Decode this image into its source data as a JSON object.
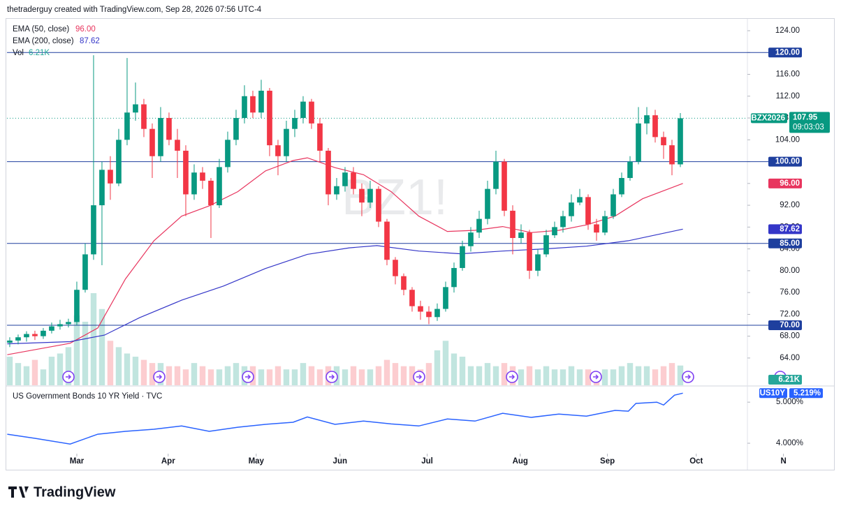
{
  "chart_data": {
    "type": "candlestick",
    "title": "thetraderguy created with TradingView.com, Sep 28, 2026 07:56 UTC-4",
    "watermark": "BZ1!",
    "brand": "TradingView",
    "up_color": "#089981",
    "down_color": "#f23645",
    "xlim": [
      -0.33,
      88
    ],
    "xticks": [
      {
        "value": 8,
        "label": "Mar"
      },
      {
        "value": 18.9,
        "label": "Apr"
      },
      {
        "value": 29.4,
        "label": "May"
      },
      {
        "value": 39.4,
        "label": "Jun"
      },
      {
        "value": 49.8,
        "label": "Jul"
      },
      {
        "value": 60.9,
        "label": "Aug"
      },
      {
        "value": 71.3,
        "label": "Sep"
      },
      {
        "value": 81.9,
        "label": "Oct"
      },
      {
        "value": 92.3,
        "label": "N"
      }
    ],
    "ylim": [
      59,
      128.35
    ],
    "yticks": [
      {
        "value": 64,
        "label": "64.00"
      },
      {
        "value": 68,
        "label": "68.00"
      },
      {
        "value": 72,
        "label": "72.00"
      },
      {
        "value": 76,
        "label": "76.00"
      },
      {
        "value": 80,
        "label": "80.00"
      },
      {
        "value": 84,
        "label": "84.00"
      },
      {
        "value": 88,
        "label": "88.00"
      },
      {
        "value": 92,
        "label": "92.00"
      },
      {
        "value": 96,
        "label": "96.00"
      },
      {
        "value": 100,
        "label": "100.00"
      },
      {
        "value": 104,
        "label": "104.00"
      },
      {
        "value": 108,
        "label": "108.00"
      },
      {
        "value": 112,
        "label": "112.00"
      },
      {
        "value": 116,
        "label": "116.00"
      },
      {
        "value": 120,
        "label": "120.00"
      },
      {
        "value": 124,
        "label": "124.00"
      }
    ],
    "levels": [
      {
        "value": 120,
        "label": "120.00"
      },
      {
        "value": 100,
        "label": "100.00"
      },
      {
        "value": 85,
        "label": "85.00"
      },
      {
        "value": 70,
        "label": "70.00"
      }
    ],
    "level_color": "#1e3f9e",
    "ticker": "BZX2026",
    "last_price": {
      "value": 107.95,
      "label": "107.95"
    },
    "countdown": "09:03:03",
    "open": [
      66.8,
      67.2,
      67.8,
      68.4,
      68.0,
      69.0,
      69.8,
      70.2,
      70.6,
      76.5,
      83.0,
      92.0,
      98.5,
      96.0,
      104.0,
      109.0,
      110.5,
      106.0,
      101.0,
      108.0,
      104.0,
      102.0,
      94.0,
      98.0,
      96.5,
      92.0,
      99.0,
      104.0,
      108.0,
      112.0,
      109.0,
      113.0,
      103.0,
      101.0,
      106.0,
      108.0,
      111.0,
      107.0,
      102.0,
      94.0,
      95.5,
      98.0,
      95.0,
      92.5,
      95.0,
      89.0,
      82.0,
      79.0,
      76.5,
      73.5,
      72.5,
      71.5,
      73.0,
      77.0,
      80.5,
      84.5,
      87.0,
      89.5,
      95.0,
      100.0,
      91.0,
      86.0,
      87.0,
      80.0,
      83.0,
      86.5,
      88.0,
      90.0,
      92.5,
      93.5,
      88.5,
      87.0,
      90.0,
      94.0,
      97.0,
      100.0,
      107.0,
      108.5,
      104.5,
      103.0,
      99.5
    ],
    "high": [
      67.8,
      68.3,
      68.9,
      69.0,
      69.5,
      70.5,
      71.0,
      71.2,
      78.0,
      85.0,
      119.5,
      100.0,
      101.0,
      106.0,
      119.0,
      114.5,
      111.5,
      107.0,
      110.0,
      109.0,
      106.0,
      103.0,
      99.5,
      99.0,
      97.0,
      100.5,
      105.5,
      109.5,
      114.0,
      113.0,
      115.0,
      113.5,
      104.0,
      107.5,
      109.5,
      112.0,
      111.5,
      108.0,
      102.5,
      97.0,
      99.0,
      99.0,
      96.0,
      96.5,
      95.5,
      89.5,
      82.5,
      79.5,
      77.0,
      74.5,
      73.5,
      74.0,
      78.0,
      81.5,
      85.5,
      88.0,
      91.0,
      96.5,
      102.0,
      100.5,
      92.0,
      88.5,
      87.5,
      84.0,
      87.5,
      89.0,
      91.0,
      94.0,
      95.0,
      94.0,
      89.5,
      91.0,
      95.0,
      98.0,
      101.0,
      110.0,
      110.0,
      109.5,
      105.5,
      104.0,
      108.9
    ],
    "low": [
      66.0,
      66.5,
      67.0,
      67.3,
      67.5,
      68.5,
      69.2,
      69.6,
      70.0,
      76.0,
      82.0,
      81.0,
      93.0,
      95.5,
      103.0,
      107.5,
      104.5,
      97.0,
      100.0,
      103.0,
      97.0,
      90.0,
      93.0,
      95.0,
      86.0,
      91.5,
      98.0,
      103.0,
      107.0,
      108.0,
      108.0,
      101.0,
      97.5,
      100.0,
      104.5,
      107.0,
      106.0,
      100.0,
      92.0,
      93.0,
      94.5,
      94.0,
      90.0,
      91.5,
      88.0,
      81.0,
      77.5,
      75.5,
      72.5,
      71.0,
      70.2,
      70.8,
      72.5,
      76.0,
      80.0,
      83.5,
      86.0,
      88.5,
      94.0,
      90.0,
      83.0,
      85.0,
      78.5,
      79.0,
      82.5,
      86.0,
      87.0,
      89.0,
      92.0,
      87.5,
      85.5,
      86.5,
      89.5,
      93.5,
      96.5,
      99.5,
      105.0,
      103.5,
      100.5,
      97.5,
      99.0
    ],
    "close": [
      67.2,
      67.8,
      68.4,
      68.0,
      69.0,
      69.8,
      70.2,
      70.6,
      76.5,
      83.0,
      92.0,
      98.5,
      96.0,
      104.0,
      109.0,
      110.5,
      106.0,
      101.0,
      108.0,
      104.0,
      102.0,
      94.0,
      98.0,
      96.5,
      92.0,
      99.0,
      104.0,
      108.0,
      112.0,
      109.0,
      113.0,
      103.0,
      101.0,
      106.0,
      108.0,
      111.0,
      107.0,
      102.0,
      94.0,
      95.5,
      98.0,
      95.0,
      92.5,
      95.0,
      89.0,
      82.0,
      79.0,
      76.5,
      73.5,
      72.5,
      71.5,
      73.0,
      77.0,
      80.5,
      84.5,
      87.0,
      89.5,
      95.0,
      100.0,
      91.0,
      86.0,
      87.0,
      80.0,
      83.0,
      86.5,
      88.0,
      90.0,
      92.5,
      93.5,
      88.5,
      87.0,
      90.0,
      94.0,
      97.0,
      100.0,
      107.0,
      108.5,
      104.5,
      103.0,
      99.5,
      107.95
    ],
    "volume": {
      "name": "Vol",
      "color": "#26a69a",
      "vlim": [
        0,
        29
      ],
      "values": [
        9,
        7,
        6,
        8,
        5,
        9,
        10,
        12,
        22,
        20,
        29,
        24,
        14,
        12,
        10,
        9,
        8,
        7,
        7,
        6,
        6,
        5,
        7,
        6,
        5,
        5,
        6,
        7,
        6,
        6,
        5,
        5,
        6,
        5,
        5,
        7,
        6,
        5,
        6,
        6,
        5,
        6,
        5,
        5,
        6,
        8,
        7,
        6,
        6,
        5,
        7,
        11,
        14,
        10,
        9,
        6,
        6,
        7,
        6,
        7,
        6,
        5,
        6,
        5,
        6,
        5,
        5,
        6,
        5,
        5,
        4,
        5,
        5,
        6,
        7,
        6,
        6,
        5,
        6,
        7,
        6.21
      ],
      "value_label": "6.21K"
    },
    "series": [
      {
        "name": "EMA (50, close)",
        "color": "#e8355e",
        "x": [
          -0.3,
          7.2,
          10.5,
          13.8,
          17.2,
          20.5,
          23.8,
          27.2,
          30.5,
          33.8,
          35.5,
          38.8,
          42.2,
          45.5,
          48.8,
          52.2,
          55.5,
          58.8,
          62.2,
          65.5,
          68.8,
          72.2,
          75.5,
          80.3
        ],
        "values": [
          64.6,
          66.7,
          69.5,
          78.5,
          85.5,
          90.0,
          91.9,
          94.5,
          98.3,
          100.2,
          100.7,
          98.9,
          97.6,
          94.5,
          90.0,
          87.2,
          87.4,
          88.1,
          87.0,
          87.4,
          88.4,
          90.0,
          93.2,
          96.0
        ],
        "value_label": "96.00"
      },
      {
        "name": "EMA (200, close)",
        "color": "#3436c8",
        "x": [
          -0.3,
          7.2,
          11.3,
          15.5,
          20.5,
          25.5,
          30.5,
          35.5,
          40.5,
          43.8,
          48.8,
          53.8,
          58.8,
          63.8,
          68.8,
          73.8,
          80.3
        ],
        "values": [
          66.6,
          67.0,
          68.2,
          71.4,
          74.6,
          77.2,
          80.4,
          83.0,
          84.2,
          84.6,
          83.6,
          83.1,
          83.6,
          84.0,
          84.5,
          85.5,
          87.62
        ],
        "value_label": "87.62"
      }
    ],
    "yield": {
      "name": "US Government Bonds 10 YR Yield · TVC",
      "ticker": "US10Y",
      "color": "#2962ff",
      "ylim": [
        3.78,
        5.36
      ],
      "yticks": [
        {
          "value": 4,
          "label": "4.000%"
        },
        {
          "value": 5,
          "label": "5.000%"
        }
      ],
      "x": [
        -0.3,
        3.0,
        7.2,
        10.5,
        13.8,
        17.2,
        20.5,
        23.8,
        27.2,
        30.5,
        33.8,
        35.5,
        38.8,
        42.2,
        45.5,
        48.8,
        52.2,
        55.5,
        58.8,
        62.2,
        65.5,
        68.8,
        72.2,
        73.8,
        74.7,
        77.2,
        78.0,
        79.3,
        80.3
      ],
      "values": [
        4.22,
        4.12,
        3.98,
        4.22,
        4.29,
        4.34,
        4.42,
        4.29,
        4.39,
        4.46,
        4.51,
        4.64,
        4.46,
        4.54,
        4.47,
        4.42,
        4.59,
        4.54,
        4.73,
        4.63,
        4.71,
        4.66,
        4.8,
        4.78,
        4.97,
        5.0,
        4.93,
        5.17,
        5.219
      ],
      "value_label": "5.219%"
    }
  }
}
